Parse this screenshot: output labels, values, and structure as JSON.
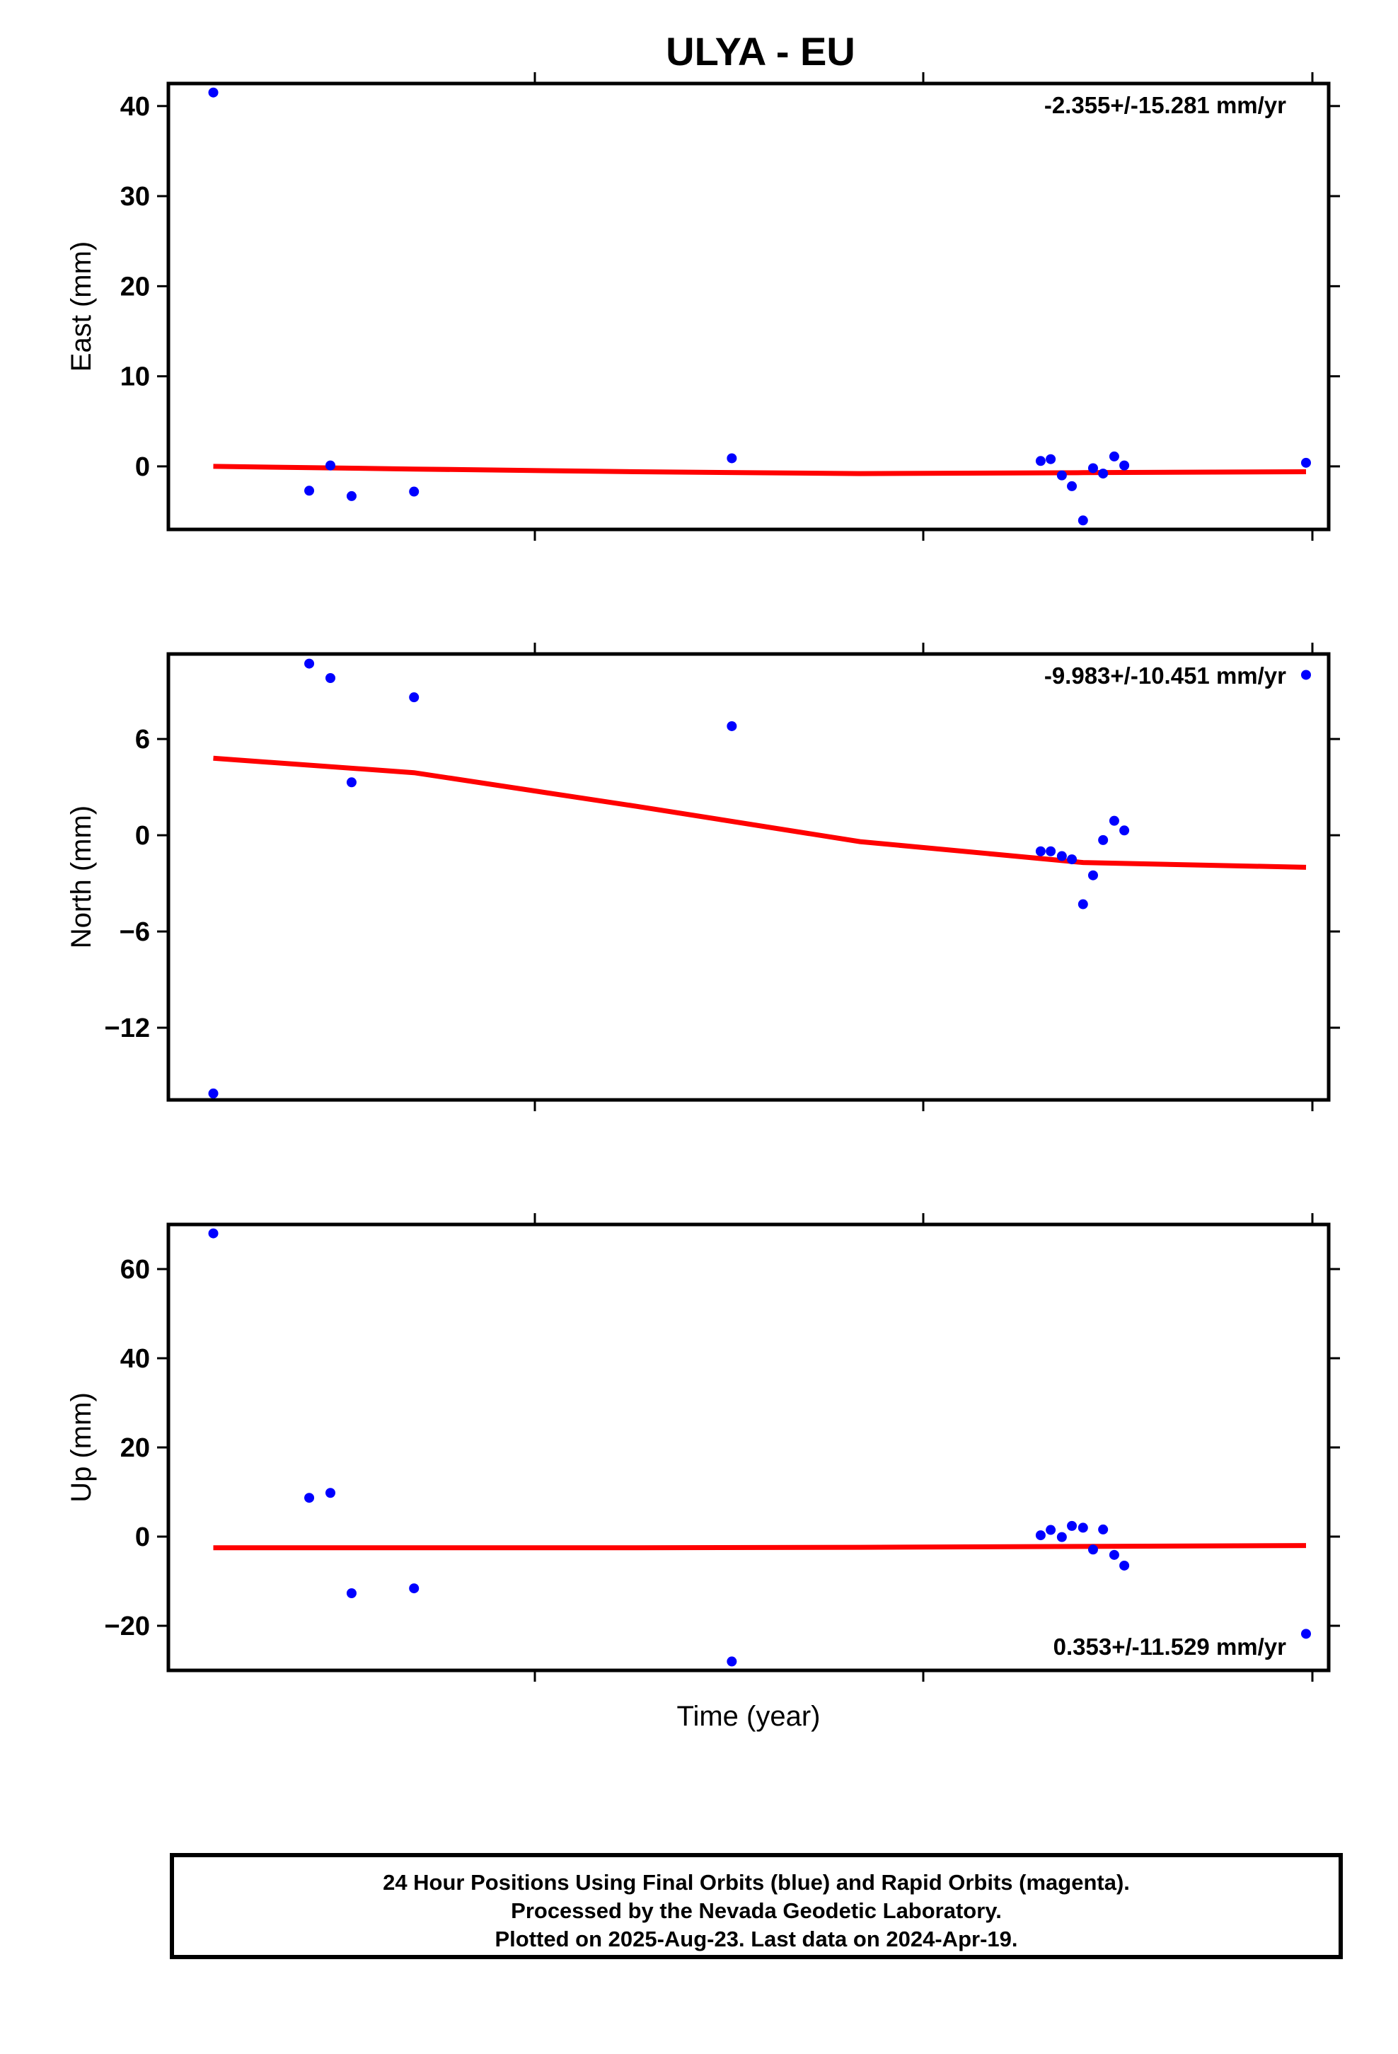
{
  "chart": {
    "title": "ULYA - EU",
    "xlabel": "Time (year)",
    "footer": [
      "24 Hour Positions Using Final Orbits (blue) and Rapid Orbits (magenta).",
      "Processed by the Nevada Geodetic Laboratory.",
      "Plotted on 2025-Aug-23. Last data on 2024-Apr-19."
    ]
  },
  "colors": {
    "points": "#0000ff",
    "fit": "#ff0000",
    "frame": "#000000"
  },
  "chart_data": [
    {
      "type": "scatter",
      "ylabel": "East (mm)",
      "rate": "-2.355+/-15.281 mm/yr",
      "rate_position": "top-right",
      "ylim": [
        -7,
        42.5
      ],
      "yticks": [
        0,
        10,
        20,
        30,
        40
      ],
      "grid": false,
      "x": [
        0.02,
        0.106,
        0.125,
        0.144,
        0.2,
        0.485,
        0.762,
        0.771,
        0.781,
        0.79,
        0.8,
        0.809,
        0.818,
        0.828,
        0.837
      ],
      "y": [
        41.5,
        -2.7,
        0.1,
        -3.3,
        -2.8,
        0.9,
        0.6,
        0.8,
        -1.0,
        -2.2,
        -6.0,
        -0.2,
        -0.8,
        1.1,
        0.1
      ],
      "extra_points": {
        "x": [
          1.0
        ],
        "y": [
          0.4
        ]
      },
      "fit": {
        "x": [
          0.02,
          0.2,
          0.4,
          0.6,
          0.8,
          1.0
        ],
        "y": [
          0.0,
          -0.3,
          -0.6,
          -0.8,
          -0.7,
          -0.6
        ]
      }
    },
    {
      "type": "scatter",
      "ylabel": "North (mm)",
      "rate": "-9.983+/-10.451 mm/yr",
      "rate_position": "top-right",
      "ylim": [
        -16.5,
        11.3
      ],
      "yticks": [
        -12,
        -6,
        0,
        6
      ],
      "grid": false,
      "x": [
        0.02,
        0.106,
        0.125,
        0.144,
        0.2,
        0.485,
        0.762,
        0.771,
        0.781,
        0.79,
        0.8,
        0.809,
        0.818,
        0.828,
        0.837,
        1.0
      ],
      "y": [
        -16.1,
        10.7,
        9.8,
        3.3,
        8.6,
        6.8,
        -1.0,
        -1.0,
        -1.3,
        -1.5,
        -4.3,
        -2.5,
        -0.3,
        0.9,
        0.3,
        10.0
      ],
      "fit": {
        "x": [
          0.02,
          0.2,
          0.4,
          0.6,
          0.8,
          1.0
        ],
        "y": [
          4.8,
          3.9,
          1.8,
          -0.4,
          -1.7,
          -2.0
        ]
      }
    },
    {
      "type": "scatter",
      "ylabel": "Up (mm)",
      "rate": "0.353+/-11.529 mm/yr",
      "rate_position": "bottom-right",
      "ylim": [
        -30,
        70
      ],
      "yticks": [
        -20,
        0,
        20,
        40,
        60
      ],
      "grid": false,
      "x": [
        0.02,
        0.106,
        0.125,
        0.144,
        0.2,
        0.485,
        0.762,
        0.771,
        0.781,
        0.79,
        0.8,
        0.809,
        0.818,
        0.828,
        0.837,
        1.0
      ],
      "y": [
        68,
        8.7,
        9.8,
        -12.7,
        -11.6,
        -28,
        0.3,
        1.5,
        -0.1,
        2.4,
        2.0,
        -2.9,
        1.6,
        -4.1,
        -6.5,
        -21.8
      ],
      "fit": {
        "x": [
          0.02,
          0.2,
          0.4,
          0.6,
          0.8,
          1.0
        ],
        "y": [
          -2.5,
          -2.5,
          -2.5,
          -2.4,
          -2.2,
          -2.0
        ]
      }
    }
  ]
}
